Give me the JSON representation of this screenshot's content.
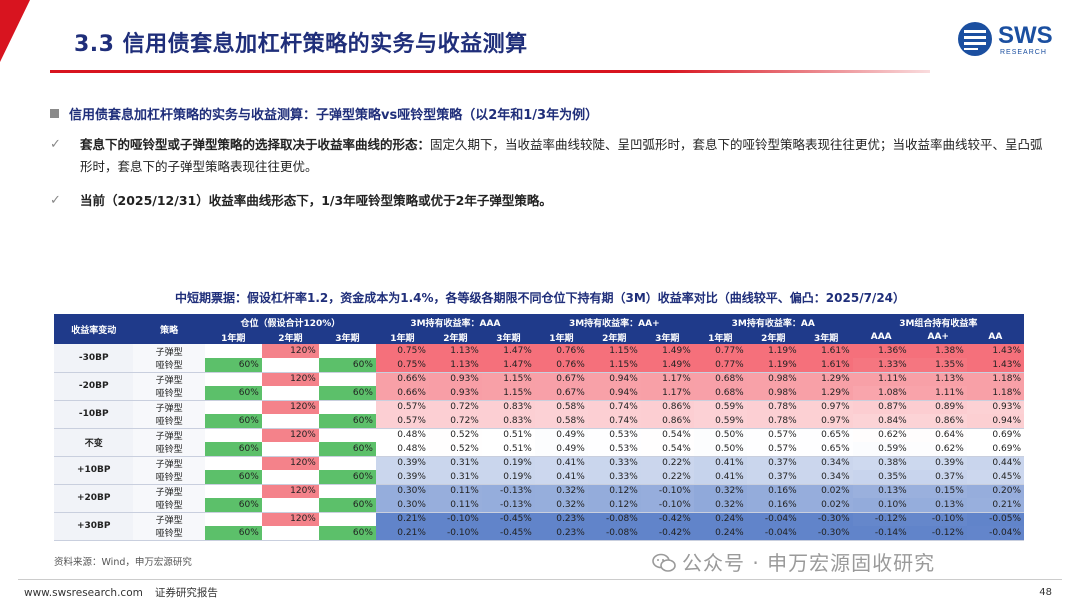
{
  "header": {
    "title": "3.3 信用债套息加杠杆策略的实务与收益测算",
    "logo_text": "SWS",
    "logo_sub": "RESEARCH"
  },
  "section": {
    "heading": "信用债套息加杠杆策略的实务与收益测算：子弹型策略vs哑铃型策略（以2年和1/3年为例）",
    "bullets": [
      {
        "bold": "套息下的哑铃型或子弹型策略的选择取决于收益率曲线的形态：",
        "text": "固定久期下，当收益率曲线较陡、呈凹弧形时，套息下的哑铃型策略表现往往更优；当收益率曲线较平、呈凸弧形时，套息下的子弹型策略表现往往更优。"
      },
      {
        "bold": "当前（2025/12/31）收益率曲线形态下，1/3年哑铃型策略或优于2年子弹型策略。",
        "text": ""
      }
    ]
  },
  "table": {
    "title": "中短期票据：假设杠杆率1.2，资金成本为1.4%，各等级各期限不同仓位下持有期（3M）收益率对比（曲线较平、偏凸：2025/7/24）",
    "col_change": "收益率变动",
    "col_strategy": "策略",
    "group_headers": [
      "仓位（假设合计120%）",
      "3M持有收益率：AAA",
      "3M持有收益率：AA+",
      "3M持有收益率：AA",
      "3M组合持有收益率"
    ],
    "sub_headers": [
      "1年期",
      "2年期",
      "3年期",
      "1年期",
      "2年期",
      "3年期",
      "1年期",
      "2年期",
      "3年期",
      "1年期",
      "2年期",
      "3年期",
      "AAA",
      "AA+",
      "AA"
    ],
    "groups": [
      {
        "change": "-30BP",
        "rows": [
          {
            "strategy": "子弹型",
            "pos": [
              "",
              "120%",
              ""
            ],
            "v": [
              "0.75%",
              "1.13%",
              "1.47%",
              "0.76%",
              "1.15%",
              "1.49%",
              "0.77%",
              "1.19%",
              "1.61%",
              "1.36%",
              "1.38%",
              "1.43%"
            ]
          },
          {
            "strategy": "哑铃型",
            "pos": [
              "60%",
              "",
              "60%"
            ],
            "v": [
              "0.75%",
              "1.13%",
              "1.47%",
              "0.76%",
              "1.15%",
              "1.49%",
              "0.77%",
              "1.19%",
              "1.61%",
              "1.33%",
              "1.35%",
              "1.43%"
            ]
          }
        ]
      },
      {
        "change": "-20BP",
        "rows": [
          {
            "strategy": "子弹型",
            "pos": [
              "",
              "120%",
              ""
            ],
            "v": [
              "0.66%",
              "0.93%",
              "1.15%",
              "0.67%",
              "0.94%",
              "1.17%",
              "0.68%",
              "0.98%",
              "1.29%",
              "1.11%",
              "1.13%",
              "1.18%"
            ]
          },
          {
            "strategy": "哑铃型",
            "pos": [
              "60%",
              "",
              "60%"
            ],
            "v": [
              "0.66%",
              "0.93%",
              "1.15%",
              "0.67%",
              "0.94%",
              "1.17%",
              "0.68%",
              "0.98%",
              "1.29%",
              "1.08%",
              "1.11%",
              "1.18%"
            ]
          }
        ]
      },
      {
        "change": "-10BP",
        "rows": [
          {
            "strategy": "子弹型",
            "pos": [
              "",
              "120%",
              ""
            ],
            "v": [
              "0.57%",
              "0.72%",
              "0.83%",
              "0.58%",
              "0.74%",
              "0.86%",
              "0.59%",
              "0.78%",
              "0.97%",
              "0.87%",
              "0.89%",
              "0.93%"
            ]
          },
          {
            "strategy": "哑铃型",
            "pos": [
              "60%",
              "",
              "60%"
            ],
            "v": [
              "0.57%",
              "0.72%",
              "0.83%",
              "0.58%",
              "0.74%",
              "0.86%",
              "0.59%",
              "0.78%",
              "0.97%",
              "0.84%",
              "0.86%",
              "0.94%"
            ]
          }
        ]
      },
      {
        "change": "不变",
        "rows": [
          {
            "strategy": "子弹型",
            "pos": [
              "",
              "120%",
              ""
            ],
            "v": [
              "0.48%",
              "0.52%",
              "0.51%",
              "0.49%",
              "0.53%",
              "0.54%",
              "0.50%",
              "0.57%",
              "0.65%",
              "0.62%",
              "0.64%",
              "0.69%"
            ]
          },
          {
            "strategy": "哑铃型",
            "pos": [
              "60%",
              "",
              "60%"
            ],
            "v": [
              "0.48%",
              "0.52%",
              "0.51%",
              "0.49%",
              "0.53%",
              "0.54%",
              "0.50%",
              "0.57%",
              "0.65%",
              "0.59%",
              "0.62%",
              "0.69%"
            ]
          }
        ]
      },
      {
        "change": "+10BP",
        "rows": [
          {
            "strategy": "子弹型",
            "pos": [
              "",
              "120%",
              ""
            ],
            "v": [
              "0.39%",
              "0.31%",
              "0.19%",
              "0.41%",
              "0.33%",
              "0.22%",
              "0.41%",
              "0.37%",
              "0.34%",
              "0.38%",
              "0.39%",
              "0.44%"
            ]
          },
          {
            "strategy": "哑铃型",
            "pos": [
              "60%",
              "",
              "60%"
            ],
            "v": [
              "0.39%",
              "0.31%",
              "0.19%",
              "0.41%",
              "0.33%",
              "0.22%",
              "0.41%",
              "0.37%",
              "0.34%",
              "0.35%",
              "0.37%",
              "0.45%"
            ]
          }
        ]
      },
      {
        "change": "+20BP",
        "rows": [
          {
            "strategy": "子弹型",
            "pos": [
              "",
              "120%",
              ""
            ],
            "v": [
              "0.30%",
              "0.11%",
              "-0.13%",
              "0.32%",
              "0.12%",
              "-0.10%",
              "0.32%",
              "0.16%",
              "0.02%",
              "0.13%",
              "0.15%",
              "0.20%"
            ]
          },
          {
            "strategy": "哑铃型",
            "pos": [
              "60%",
              "",
              "60%"
            ],
            "v": [
              "0.30%",
              "0.11%",
              "-0.13%",
              "0.32%",
              "0.12%",
              "-0.10%",
              "0.32%",
              "0.16%",
              "0.02%",
              "0.10%",
              "0.13%",
              "0.21%"
            ]
          }
        ]
      },
      {
        "change": "+30BP",
        "rows": [
          {
            "strategy": "子弹型",
            "pos": [
              "",
              "120%",
              ""
            ],
            "v": [
              "0.21%",
              "-0.10%",
              "-0.45%",
              "0.23%",
              "-0.08%",
              "-0.42%",
              "0.24%",
              "-0.04%",
              "-0.30%",
              "-0.12%",
              "-0.10%",
              "-0.05%"
            ]
          },
          {
            "strategy": "哑铃型",
            "pos": [
              "60%",
              "",
              "60%"
            ],
            "v": [
              "0.21%",
              "-0.10%",
              "-0.45%",
              "0.23%",
              "-0.08%",
              "-0.42%",
              "0.24%",
              "-0.04%",
              "-0.30%",
              "-0.14%",
              "-0.12%",
              "-0.04%"
            ]
          }
        ]
      }
    ],
    "colors": {
      "header_bg": "#1f3a8a",
      "bullet_pos": "#f4828a",
      "barbell_pos": "#5cc06a",
      "heat_high": "#f4606c",
      "heat_mid": "#ffffff",
      "heat_low": "#4f76c4"
    }
  },
  "source": "资料来源：Wind，申万宏源研究",
  "watermark": "公众号 · 申万宏源固收研究",
  "footer": {
    "url": "www.swsresearch.com",
    "label": "证券研究报告",
    "page": "48"
  }
}
